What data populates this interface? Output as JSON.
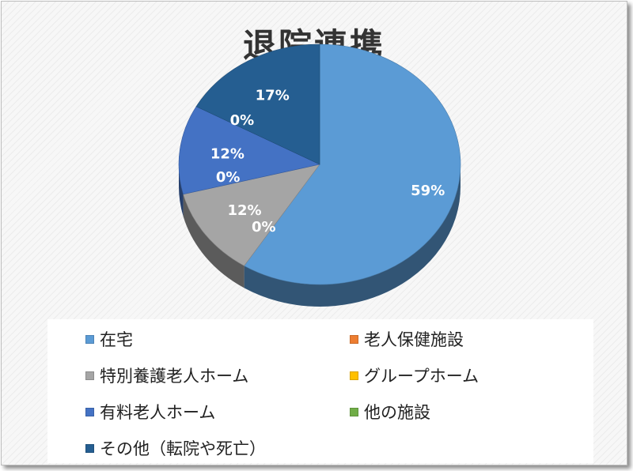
{
  "chart_data": {
    "type": "pie",
    "title": "退院連携",
    "categories": [
      "在宅",
      "老人保健施設",
      "特別養護老人ホーム",
      "グループホーム",
      "有料老人ホーム",
      "他の施設",
      "その他（転院や死亡）"
    ],
    "values": [
      59,
      0,
      12,
      0,
      12,
      0,
      17
    ],
    "data_labels": [
      "59%",
      "0%",
      "12%",
      "0%",
      "12%",
      "0%",
      "17%"
    ],
    "colors": [
      "#5b9bd5",
      "#ed7d31",
      "#a5a5a5",
      "#ffc000",
      "#4472c4",
      "#70ad47",
      "#255e91"
    ],
    "legend_position": "bottom",
    "style": "3d"
  }
}
